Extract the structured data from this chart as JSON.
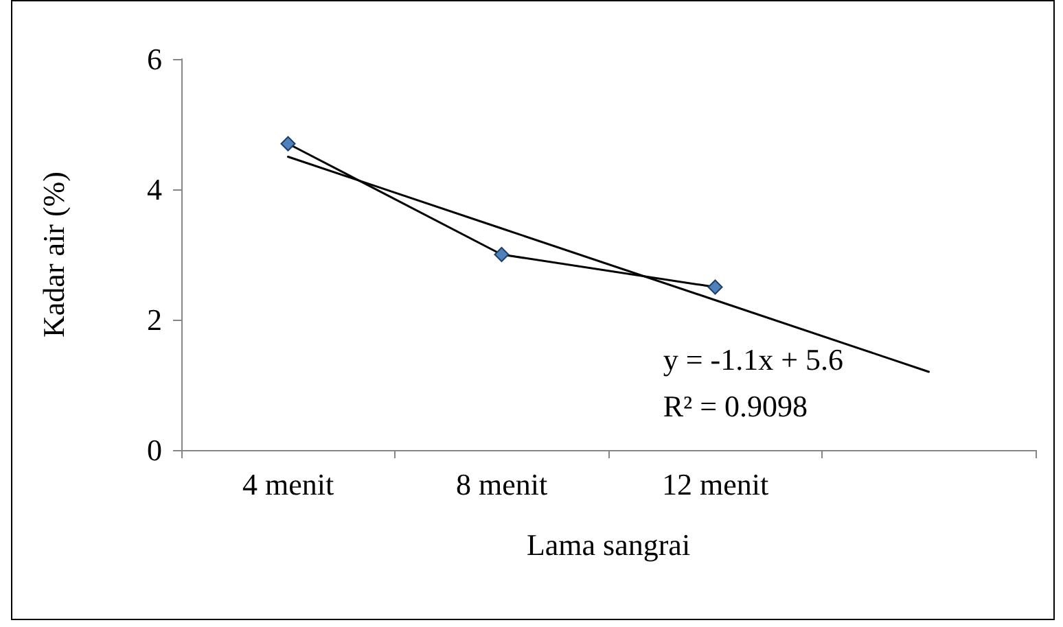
{
  "chart_data": {
    "type": "line",
    "xlabel": "Lama sangrai",
    "ylabel": "Kadar air (%)",
    "categories": [
      "4 menit",
      "8 menit",
      "12 menit",
      null
    ],
    "series": [
      {
        "color": "#4f81bd",
        "marker": "diamond",
        "values": [
          4.7,
          3.0,
          2.5,
          null
        ]
      },
      {
        "color": "#000000",
        "marker": "none",
        "values": [
          4.5,
          3.4,
          2.3,
          1.2
        ]
      }
    ],
    "ylim": [
      0,
      6
    ],
    "yticks": [
      0,
      2,
      4,
      6
    ],
    "grid": false,
    "annotations": [
      "y = -1.1x + 5.6",
      "R² = 0.9098"
    ]
  }
}
